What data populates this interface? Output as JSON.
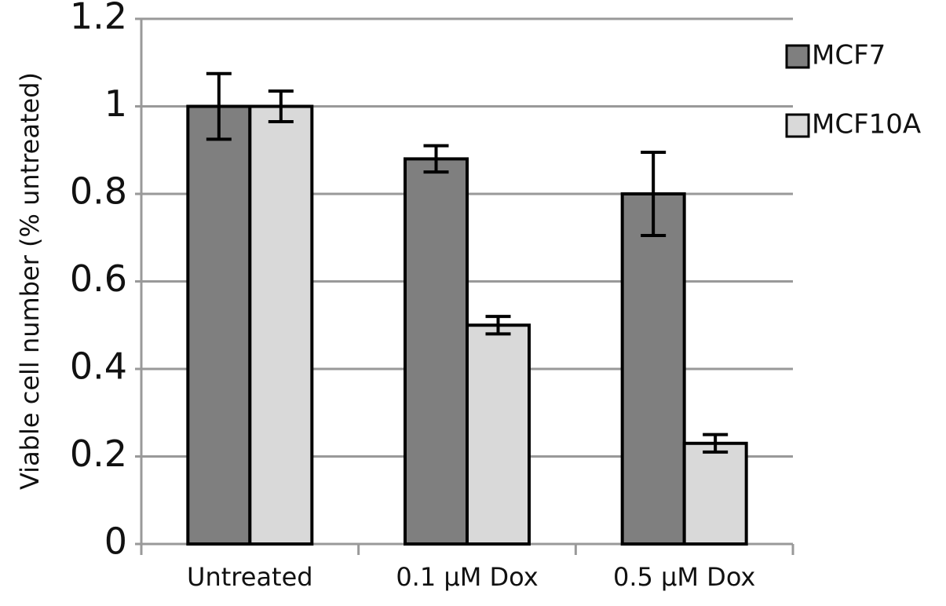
{
  "chart_data": {
    "type": "bar",
    "y_label": "Viable cell number (% untreated)",
    "categories": [
      "Untreated",
      "0.1 µM Dox",
      "0.5 µM Dox"
    ],
    "series": [
      {
        "name": "MCF7",
        "color": "#7f7f7f",
        "values": [
          1.0,
          0.88,
          0.8
        ],
        "errors": [
          0.075,
          0.03,
          0.095
        ]
      },
      {
        "name": "MCF10A",
        "color": "#d9d9d9",
        "values": [
          1.0,
          0.5,
          0.23
        ],
        "errors": [
          0.035,
          0.02,
          0.02
        ]
      }
    ],
    "ylim": [
      0,
      1.2
    ],
    "yticks": [
      0,
      0.2,
      0.4,
      0.6,
      0.8,
      1,
      1.2
    ],
    "grid": true,
    "legend": "right"
  }
}
